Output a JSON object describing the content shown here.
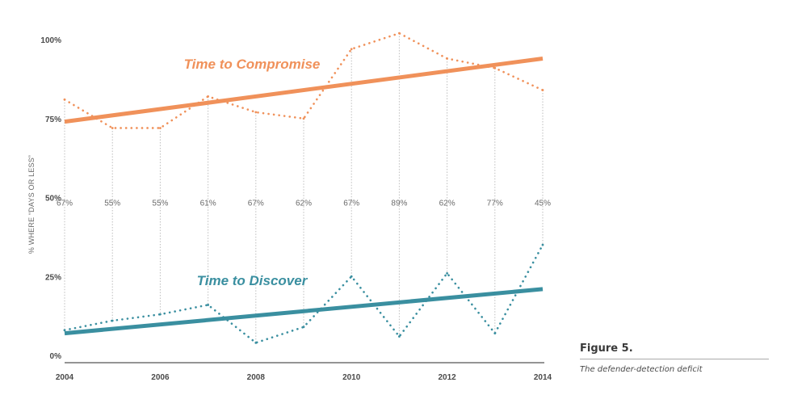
{
  "chart_data": {
    "type": "line",
    "ylabel": "% WHERE “DAYS OR LESS”",
    "ylim": [
      0,
      100
    ],
    "xlim": [
      2004,
      2014
    ],
    "y_ticks": [
      "0%",
      "25%",
      "50%",
      "75%",
      "100%"
    ],
    "y_tick_values": [
      0,
      25,
      50,
      75,
      100
    ],
    "x_ticks": [
      "2004",
      "2006",
      "2008",
      "2010",
      "2012",
      "2014"
    ],
    "x_tick_values": [
      2004,
      2006,
      2008,
      2010,
      2012,
      2014
    ],
    "x": [
      2004,
      2005,
      2006,
      2007,
      2008,
      2009,
      2010,
      2011,
      2012,
      2013,
      2014
    ],
    "gap_labels": [
      "67%",
      "55%",
      "55%",
      "61%",
      "67%",
      "62%",
      "67%",
      "89%",
      "62%",
      "77%",
      "45%"
    ],
    "series": [
      {
        "name": "Time to Compromise",
        "color": "#f0915a",
        "style": "dotted",
        "values": [
          81,
          72,
          72,
          82,
          77,
          75,
          97,
          102,
          94,
          91,
          84
        ]
      },
      {
        "name": "Time to Discover",
        "color": "#3a8fa0",
        "style": "dotted",
        "values": [
          8,
          11,
          13,
          16,
          4,
          9,
          25,
          6,
          26,
          7,
          35
        ]
      }
    ],
    "trendlines": [
      {
        "series": "Time to Compromise",
        "color": "#f0915a",
        "start": [
          2004,
          74
        ],
        "end": [
          2014,
          94
        ]
      },
      {
        "series": "Time to Discover",
        "color": "#3a8fa0",
        "start": [
          2004,
          7
        ],
        "end": [
          2014,
          21
        ]
      }
    ],
    "grid": false
  },
  "figure": {
    "title": "Figure 5.",
    "caption": "The defender-detection deficit"
  }
}
